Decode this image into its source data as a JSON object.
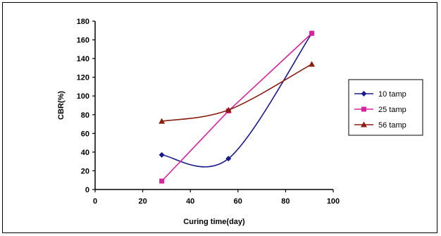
{
  "chart_data": {
    "type": "line",
    "xlabel": "Curing time(day)",
    "ylabel": "CBR(%)",
    "xlim": [
      0,
      100
    ],
    "ylim": [
      0,
      180
    ],
    "xticks": [
      0,
      20,
      40,
      60,
      80,
      100
    ],
    "yticks": [
      0,
      20,
      40,
      60,
      80,
      100,
      120,
      140,
      160,
      180
    ],
    "grid": false,
    "legend_position": "right",
    "series": [
      {
        "name": "10 tamp",
        "color": "#1a1a8c",
        "marker": "diamond",
        "smooth": true,
        "x": [
          28,
          56,
          91
        ],
        "y": [
          37,
          33,
          167
        ]
      },
      {
        "name": "25 tamp",
        "color": "#d6259c",
        "marker": "square",
        "smooth": false,
        "x": [
          28,
          56,
          91
        ],
        "y": [
          9,
          84,
          167
        ]
      },
      {
        "name": "56 tamp",
        "color": "#8a1f0f",
        "marker": "triangle",
        "smooth": true,
        "x": [
          28,
          56,
          91
        ],
        "y": [
          73,
          85,
          134
        ]
      }
    ]
  }
}
